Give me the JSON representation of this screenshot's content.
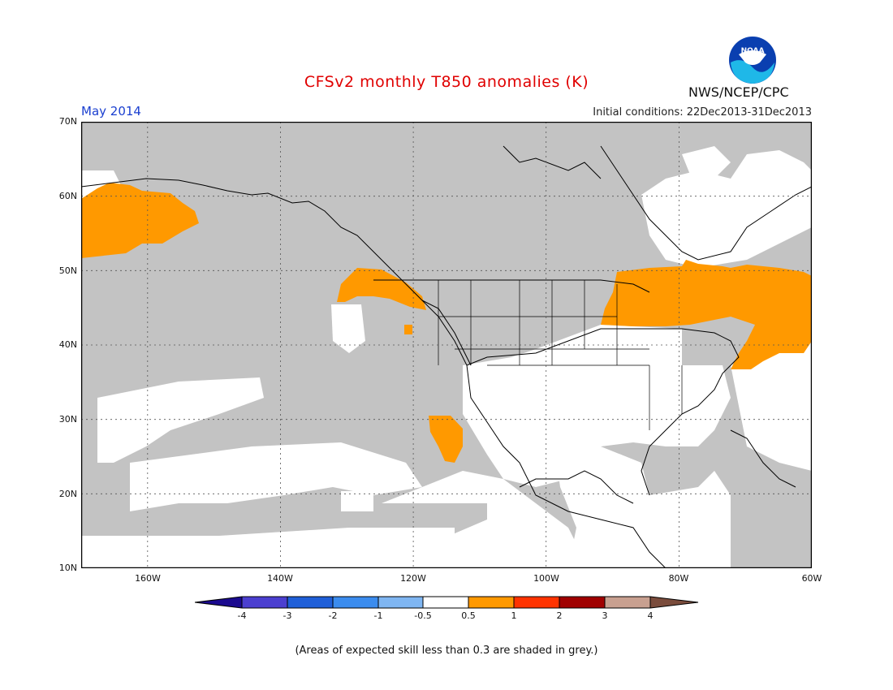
{
  "header": {
    "title": "CFSv2 monthly T850 anomalies (K)",
    "period": "May 2014",
    "initial_conditions": "Initial conditions: 22Dec2013-31Dec2013",
    "agency": "NWS/NCEP/CPC",
    "logo_text": "NOAA"
  },
  "map": {
    "lat_labels": [
      "70N",
      "60N",
      "50N",
      "40N",
      "30N",
      "20N",
      "10N"
    ],
    "lon_labels": [
      "160W",
      "140W",
      "120W",
      "100W",
      "80W",
      "60W"
    ],
    "extent": {
      "lon_min": -170,
      "lon_max": -60,
      "lat_min": 10,
      "lat_max": 70
    },
    "colors": {
      "skill_grey": "#c3c3c3",
      "warm_anomaly": "#ff9900",
      "land_outline": "#000000"
    }
  },
  "colorbar": {
    "labels": [
      "-4",
      "-3",
      "-2",
      "-1",
      "-0.5",
      "0.5",
      "1",
      "2",
      "3",
      "4"
    ],
    "colors": [
      "#1b0a8f",
      "#4b3fd0",
      "#1f5fd8",
      "#3b8cee",
      "#7fb6f2",
      "#ffffff",
      "#ff9900",
      "#ff3300",
      "#a00000",
      "#c8a090",
      "#7a4c3c"
    ]
  },
  "footnote": "(Areas of expected skill less than 0.3 are shaded in grey.)"
}
